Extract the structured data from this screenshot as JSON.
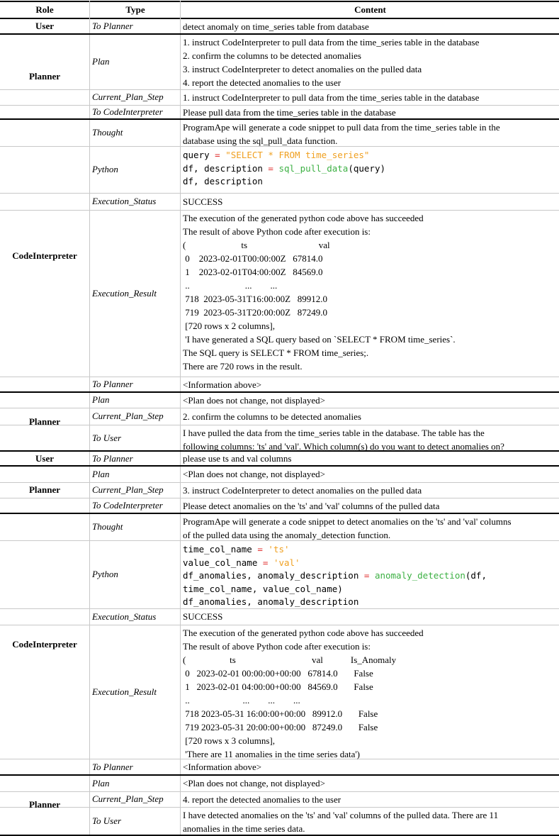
{
  "header": {
    "role": "Role",
    "type": "Type",
    "content": "Content"
  },
  "rows": [
    {
      "role": "User",
      "type": "To Planner",
      "content": [
        "detect anomaly on time_series table from database"
      ]
    },
    {
      "role": "Planner",
      "type": "Plan",
      "content": [
        "1. instruct CodeInterpreter to pull data from the time_series table in the database",
        "2. confirm the columns to be detected anomalies",
        "3. instruct CodeInterpreter to detect anomalies on the pulled data",
        "4. report the detected anomalies to the user"
      ]
    },
    {
      "type": "Current_Plan_Step",
      "content": [
        "1. instruct CodeInterpreter to pull data from the time_series table in the database"
      ]
    },
    {
      "type": "To CodeInterpreter",
      "content": [
        "Please pull data from the time_series table in the database"
      ]
    },
    {
      "role": "CodeInterpreter",
      "type": "Thought",
      "content": [
        "ProgramApe will generate a code snippet to pull data from the time_series table in the",
        "database using the sql_pull_data function."
      ]
    },
    {
      "type": "Python",
      "code": [
        [
          [
            "query ",
            ""
          ],
          [
            "= ",
            "op"
          ],
          [
            "\"SELECT * FROM time_series\"",
            "str"
          ]
        ],
        [
          [
            "df, description ",
            ""
          ],
          [
            "= ",
            "op"
          ],
          [
            "sql_pull_data",
            "fn"
          ],
          [
            "(query)",
            ""
          ]
        ],
        [
          [
            "df, description",
            ""
          ]
        ]
      ]
    },
    {
      "type": "Execution_Status",
      "content": [
        "SUCCESS"
      ]
    },
    {
      "type": "Execution_Result",
      "content": [
        "The execution of the generated python code above has succeeded",
        "The result of above Python code after execution is:",
        "(                        ts                               val",
        " 0    2023-02-01T00:00:00Z   67814.0",
        " 1    2023-02-01T04:00:00Z   84569.0",
        " ..                        ...        ...",
        " 718  2023-05-31T16:00:00Z   89912.0",
        " 719  2023-05-31T20:00:00Z   87249.0",
        " [720 rows x 2 columns],",
        " 'I have generated a SQL query based on `SELECT * FROM time_series`.",
        "The SQL query is SELECT * FROM time_series;.",
        "There are 720 rows in the result."
      ]
    },
    {
      "type": "To Planner",
      "content": [
        "<Information above>"
      ]
    },
    {
      "role": "Planner",
      "type": "Plan",
      "content": [
        "<Plan does not change, not displayed>"
      ]
    },
    {
      "type": "Current_Plan_Step",
      "content": [
        "2. confirm the columns to be detected anomalies"
      ]
    },
    {
      "type": "To User",
      "content": [
        "I have pulled the data from the time_series table in the database. The table has the",
        "following columns: 'ts' and 'val'. Which column(s) do you want to detect anomalies on?"
      ]
    },
    {
      "role": "User",
      "type": "To Planner",
      "content": [
        "please use ts and val columns"
      ]
    },
    {
      "role": "Planner",
      "type": "Plan",
      "content": [
        "<Plan does not change, not displayed>"
      ]
    },
    {
      "type": "Current_Plan_Step",
      "content": [
        "3. instruct CodeInterpreter to detect anomalies on the pulled data"
      ]
    },
    {
      "type": "To CodeInterpreter",
      "content": [
        "Please detect anomalies on the 'ts' and 'val' columns of the pulled data"
      ]
    },
    {
      "role": "CodeInterpreter",
      "type": "Thought",
      "content": [
        "ProgramApe will generate a code snippet to detect anomalies on the 'ts' and 'val' columns",
        "of the pulled data using the anomaly_detection function."
      ]
    },
    {
      "type": "Python",
      "code": [
        [
          [
            "time_col_name ",
            ""
          ],
          [
            "= ",
            "op"
          ],
          [
            "'ts'",
            "str"
          ]
        ],
        [
          [
            "value_col_name ",
            ""
          ],
          [
            "= ",
            "op"
          ],
          [
            "'val'",
            "str"
          ]
        ],
        [
          [
            "df_anomalies, anomaly_description ",
            ""
          ],
          [
            "= ",
            "op"
          ],
          [
            "anomaly_detection",
            "fn"
          ],
          [
            "(df,",
            ""
          ]
        ],
        [
          [
            "time_col_name, value_col_name)",
            ""
          ]
        ],
        [
          [
            "df_anomalies, anomaly_description",
            ""
          ]
        ]
      ]
    },
    {
      "type": "Execution_Status",
      "content": [
        "SUCCESS"
      ]
    },
    {
      "type": "Execution_Result",
      "content": [
        "The execution of the generated python code above has succeeded",
        "The result of above Python code after execution is:",
        "(                   ts                                 val            Is_Anomaly",
        " 0   2023-02-01 00:00:00+00:00   67814.0       False",
        " 1   2023-02-01 04:00:00+00:00   84569.0       False",
        " ..                       ...        ...        ...",
        " 718 2023-05-31 16:00:00+00:00   89912.0       False",
        " 719 2023-05-31 20:00:00+00:00   87249.0       False",
        " [720 rows x 3 columns],",
        " 'There are 11 anomalies in the time series data')"
      ]
    },
    {
      "type": "To Planner",
      "content": [
        "<Information above>"
      ]
    },
    {
      "role": "Planner",
      "type": "Plan",
      "content": [
        "<Plan does not change, not displayed>"
      ]
    },
    {
      "type": "Current_Plan_Step",
      "content": [
        "4. report the detected anomalies to the user"
      ]
    },
    {
      "type": "To User",
      "content": [
        "I have detected anomalies on the 'ts' and 'val' columns of the pulled data. There are 11",
        "anomalies in the time series data."
      ]
    }
  ]
}
